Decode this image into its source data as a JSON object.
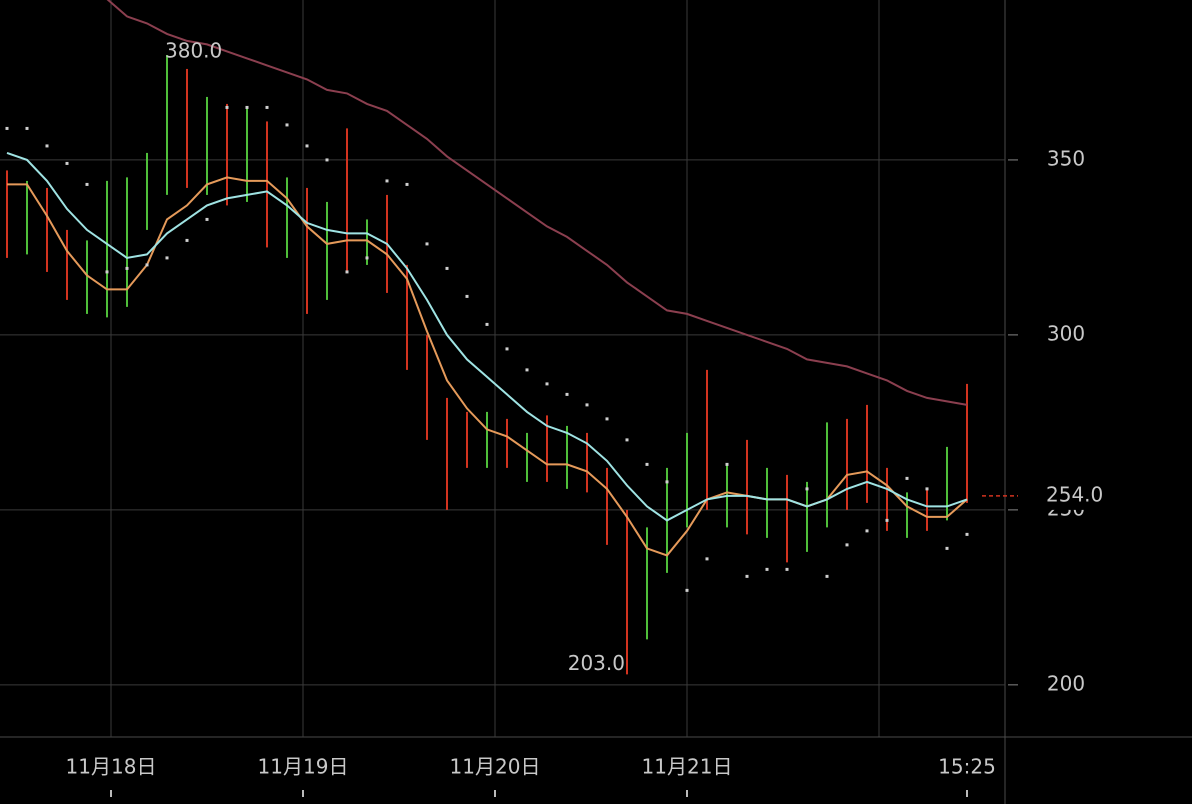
{
  "chart_data": {
    "type": "ohlc",
    "xlim": [
      -0.35,
      49.9
    ],
    "ylim": [
      185.1,
      395.7
    ],
    "xticks": [
      {
        "value": 5.2,
        "label": "11月18日"
      },
      {
        "value": 14.8,
        "label": "11月19日"
      },
      {
        "value": 24.4,
        "label": "11月20日"
      },
      {
        "value": 34,
        "label": "11月21日"
      }
    ],
    "current_time": {
      "value": 48,
      "label": "15:25"
    },
    "yticks": [
      200,
      250,
      300,
      350
    ],
    "grid": true,
    "up_color": "#4fbf3a",
    "down_color": "#d2331f",
    "open": [
      345,
      328,
      340,
      322,
      314,
      320,
      332,
      335,
      348,
      370,
      345,
      362,
      340,
      358,
      330,
      340,
      312,
      335,
      322,
      330,
      315,
      295,
      275,
      270,
      265,
      275,
      264,
      268,
      262,
      270,
      258,
      245,
      215,
      240,
      255,
      268,
      252,
      258,
      248,
      258,
      240,
      255,
      270,
      262,
      256,
      248,
      252,
      250,
      262
    ],
    "high": [
      347,
      344,
      342,
      330,
      327,
      344,
      345,
      352,
      380,
      376,
      368,
      366,
      365,
      361,
      345,
      342,
      338,
      359,
      333,
      340,
      320,
      300,
      282,
      278,
      278,
      276,
      272,
      277,
      274,
      272,
      262,
      250,
      245,
      262,
      272,
      290,
      263,
      270,
      262,
      260,
      258,
      275,
      276,
      280,
      262,
      255,
      256,
      268,
      286
    ],
    "low": [
      322,
      323,
      318,
      310,
      306,
      305,
      308,
      330,
      340,
      342,
      340,
      337,
      338,
      325,
      322,
      306,
      310,
      318,
      320,
      312,
      290,
      270,
      250,
      262,
      262,
      262,
      258,
      258,
      256,
      255,
      240,
      203,
      213,
      232,
      245,
      250,
      245,
      243,
      242,
      235,
      238,
      245,
      250,
      252,
      244,
      242,
      244,
      247,
      252
    ],
    "close": [
      328,
      340,
      322,
      314,
      320,
      332,
      340,
      348,
      370,
      345,
      362,
      340,
      358,
      330,
      340,
      312,
      335,
      322,
      330,
      315,
      295,
      275,
      270,
      265,
      275,
      264,
      268,
      262,
      270,
      258,
      245,
      215,
      240,
      255,
      268,
      252,
      258,
      248,
      258,
      240,
      255,
      270,
      262,
      256,
      248,
      252,
      250,
      262,
      254
    ],
    "series": [
      {
        "color": "#e59a5a",
        "values": [
          343,
          343,
          334,
          324,
          317,
          313,
          313,
          320,
          333,
          337,
          343,
          345,
          344,
          344,
          339,
          331,
          326,
          327,
          327,
          323,
          316,
          301,
          287,
          279,
          273,
          271,
          267,
          263,
          263,
          261,
          256,
          248,
          239,
          237,
          244,
          253,
          255,
          254,
          253,
          253,
          251,
          253,
          260,
          261,
          257,
          251,
          248,
          248,
          253
        ]
      },
      {
        "color": "#9fe3e3",
        "values": [
          352,
          350,
          344,
          336,
          330,
          326,
          322,
          323,
          329,
          333,
          337,
          339,
          340,
          341,
          337,
          332,
          330,
          329,
          329,
          326,
          319,
          310,
          300,
          293,
          288,
          283,
          278,
          274,
          272,
          269,
          264,
          257,
          251,
          247,
          250,
          253,
          254,
          254,
          253,
          253,
          251,
          253,
          256,
          258,
          256,
          253,
          251,
          251,
          253
        ]
      },
      {
        "color": "#8b3f4f",
        "values": [
          null,
          null,
          null,
          null,
          null,
          396,
          391,
          389,
          386,
          384,
          383,
          381,
          379,
          377,
          375,
          373,
          370,
          369,
          366,
          364,
          360,
          356,
          351,
          347,
          343,
          339,
          335,
          331,
          328,
          324,
          320,
          315,
          311,
          307,
          306,
          304,
          302,
          300,
          298,
          296,
          293,
          292,
          291,
          289,
          287,
          284,
          282,
          281,
          280
        ]
      }
    ],
    "sar": {
      "color": "#cfcfcf",
      "values": [
        359,
        359,
        354,
        349,
        343,
        318,
        319,
        320,
        322,
        327,
        333,
        365,
        365,
        365,
        360,
        354,
        350,
        318,
        322,
        344,
        343,
        326,
        319,
        311,
        303,
        296,
        290,
        286,
        283,
        280,
        276,
        270,
        263,
        258,
        227,
        236,
        263,
        231,
        233,
        233,
        256,
        231,
        240,
        244,
        247,
        259,
        256,
        239,
        243
      ]
    },
    "annotations": [
      {
        "index": 8,
        "value": 380,
        "label": "380.0"
      },
      {
        "index": 31,
        "value": 203,
        "label": "203.0"
      }
    ],
    "last_price": {
      "value": 254,
      "label": "254.0"
    }
  }
}
